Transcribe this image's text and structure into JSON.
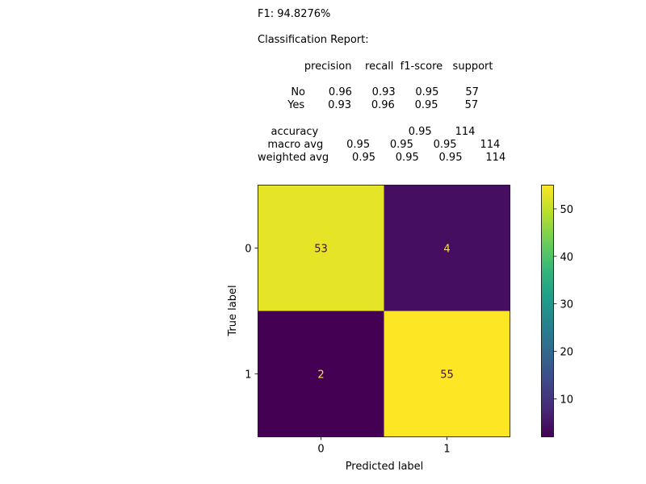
{
  "report_lines": [
    "F1: 94.8276%",
    "",
    "Classification Report:",
    "",
    "              precision    recall  f1-score   support",
    "",
    "          No       0.96      0.93      0.95        57",
    "         Yes       0.93      0.96      0.95        57",
    "",
    "    accuracy                           0.95       114",
    "   macro avg       0.95      0.95      0.95       114",
    "weighted avg       0.95      0.95      0.95       114"
  ],
  "colormap": {
    "name": "viridis",
    "stops": [
      "#440154",
      "#482878",
      "#3e4989",
      "#31688e",
      "#26828e",
      "#1f9e89",
      "#35b779",
      "#6ece58",
      "#b5de2b",
      "#fde725"
    ]
  },
  "text_colors": {
    "on_dark": "#fde725",
    "on_light": "#440154"
  },
  "chart_data": {
    "type": "heatmap",
    "xlabel": "Predicted label",
    "ylabel": "True label",
    "x_categories": [
      "0",
      "1"
    ],
    "y_categories": [
      "0",
      "1"
    ],
    "values": [
      [
        53,
        4
      ],
      [
        2,
        55
      ]
    ],
    "colorbar": {
      "min": 2,
      "max": 55,
      "ticks": [
        "10",
        "20",
        "30",
        "40",
        "50"
      ]
    }
  }
}
